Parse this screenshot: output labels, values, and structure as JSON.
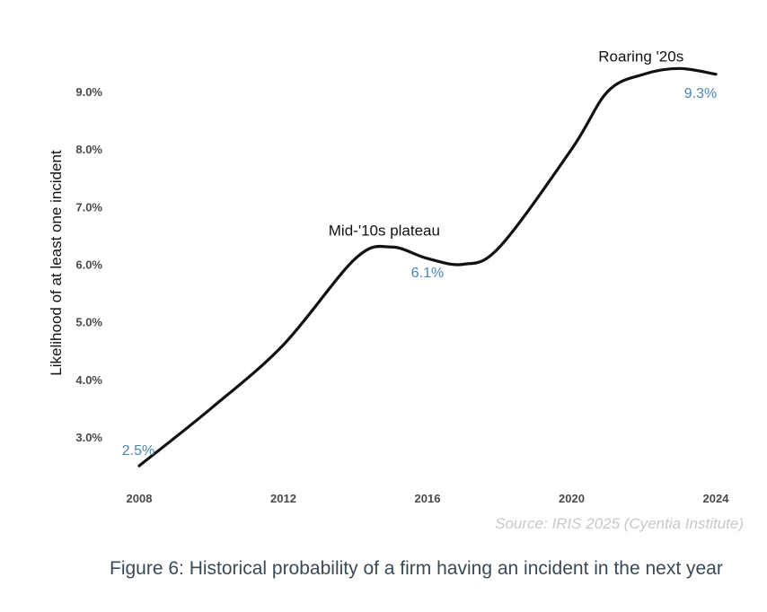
{
  "chart_data": {
    "type": "line",
    "title": "",
    "xlabel": "",
    "ylabel": "Likelihood of at least one incident",
    "x": [
      2008,
      2010,
      2012,
      2014,
      2015,
      2016,
      2017,
      2018,
      2020,
      2021,
      2022,
      2023,
      2024
    ],
    "y": [
      2.5,
      3.5,
      4.6,
      6.1,
      6.3,
      6.1,
      6.0,
      6.3,
      8.0,
      9.0,
      9.3,
      9.4,
      9.3
    ],
    "xlim": [
      2008,
      2024
    ],
    "ylim": [
      2.5,
      9.4
    ],
    "x_ticks": [
      2008,
      2012,
      2016,
      2020,
      2024
    ],
    "x_tick_labels": [
      "2008",
      "2012",
      "2016",
      "2020",
      "2024"
    ],
    "y_ticks": [
      3.0,
      4.0,
      5.0,
      6.0,
      7.0,
      8.0,
      9.0
    ],
    "y_tick_labels": [
      "3.0%",
      "4.0%",
      "5.0%",
      "6.0%",
      "7.0%",
      "8.0%",
      "9.0%"
    ],
    "grid": false,
    "line_color": "#111111",
    "label_color": "#4a86b0",
    "annotations": [
      {
        "text": "Roaring '20s",
        "x": 2022,
        "y": 9.4
      },
      {
        "text": "Mid-'10s plateau",
        "x": 2015,
        "y": 6.3
      }
    ],
    "data_labels": [
      {
        "text": "2.5%",
        "x": 2008,
        "y": 2.5
      },
      {
        "text": "6.1%",
        "x": 2016,
        "y": 6.1
      },
      {
        "text": "9.3%",
        "x": 2024,
        "y": 9.3
      }
    ]
  },
  "source": "Source: IRIS 2025 (Cyentia Institute)",
  "caption": "Figure 6: Historical probability of a firm having an incident in the next year"
}
